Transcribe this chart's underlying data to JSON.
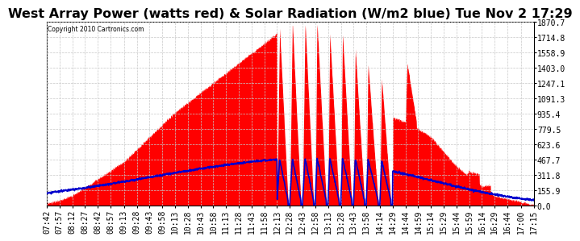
{
  "title": "West Array Power (watts red) & Solar Radiation (W/m2 blue) Tue Nov 2 17:29",
  "copyright": "Copyright 2010 Cartronics.com",
  "y_ticks": [
    0.0,
    155.9,
    311.8,
    467.7,
    623.6,
    779.5,
    935.4,
    1091.3,
    1247.1,
    1403.0,
    1558.9,
    1714.8,
    1870.7
  ],
  "x_labels": [
    "07:42",
    "07:57",
    "08:12",
    "08:27",
    "08:42",
    "08:57",
    "09:13",
    "09:28",
    "09:43",
    "09:58",
    "10:13",
    "10:28",
    "10:43",
    "10:58",
    "11:13",
    "11:28",
    "11:43",
    "11:58",
    "12:13",
    "12:28",
    "12:43",
    "12:58",
    "13:13",
    "13:28",
    "13:43",
    "13:58",
    "14:14",
    "14:29",
    "14:44",
    "14:59",
    "15:14",
    "15:29",
    "15:44",
    "15:59",
    "16:14",
    "16:29",
    "16:44",
    "17:00",
    "17:15"
  ],
  "bg_color": "#ffffff",
  "grid_color": "#c8c8c8",
  "red_color": "#ff0000",
  "blue_color": "#0000cc",
  "title_fontsize": 11.5,
  "axis_fontsize": 7.0,
  "ymax": 1870.7
}
